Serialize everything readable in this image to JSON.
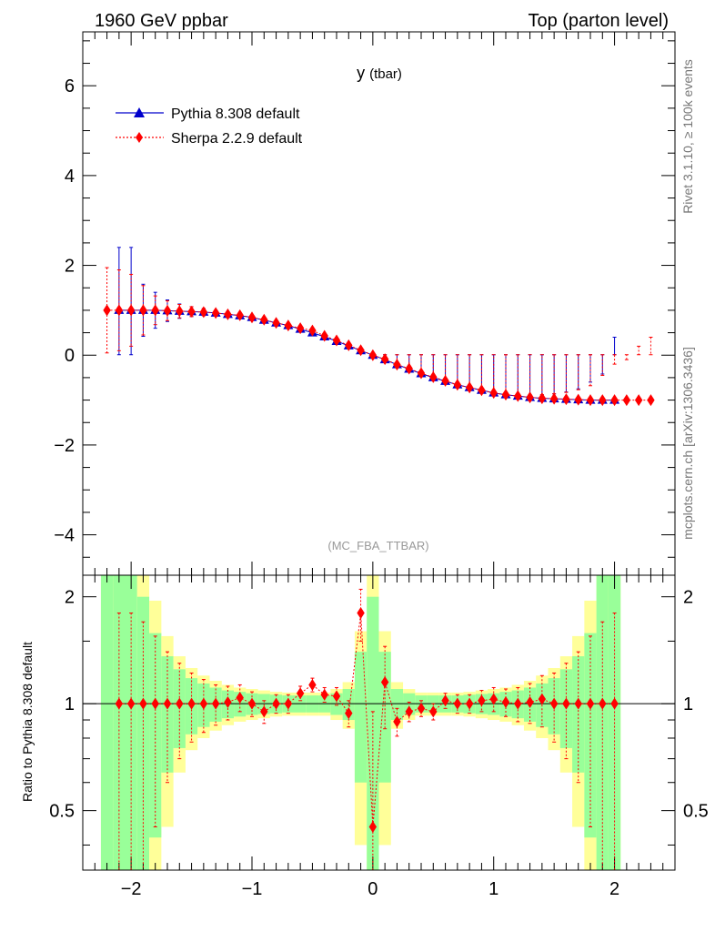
{
  "header": {
    "left": "1960 GeV ppbar",
    "right": "Top (parton level)"
  },
  "side": {
    "rivet": "Rivet 3.1.10, ≥ 100k events",
    "mcplots": "mcplots.cern.ch [arXiv:1306.3436]"
  },
  "chart_data": [
    {
      "type": "scatter",
      "title_main": "y",
      "title_sub": "(tbar)",
      "watermark": "(MC_FBA_TTBAR)",
      "xlim": [
        -2.4,
        2.5
      ],
      "ylim": [
        -4.9,
        7.2
      ],
      "yticks": [
        -4,
        -2,
        0,
        2,
        4,
        6
      ],
      "ytick_labels": [
        "−4",
        "−2",
        "0",
        "2",
        "4",
        "6"
      ],
      "legend_position": "top-left",
      "series": [
        {
          "name": "Pythia 8.308 default",
          "color": "#0000cc",
          "marker": "triangle",
          "line": "solid",
          "x": [
            -2.1,
            -2.0,
            -1.9,
            -1.8,
            -1.7,
            -1.6,
            -1.5,
            -1.4,
            -1.3,
            -1.2,
            -1.1,
            -1.0,
            -0.9,
            -0.8,
            -0.7,
            -0.6,
            -0.5,
            -0.4,
            -0.3,
            -0.2,
            -0.1,
            0.0,
            0.1,
            0.2,
            0.3,
            0.4,
            0.5,
            0.6,
            0.7,
            0.8,
            0.9,
            1.0,
            1.1,
            1.2,
            1.3,
            1.4,
            1.5,
            1.6,
            1.7,
            1.8,
            1.9,
            2.0
          ],
          "y": [
            1.0,
            1.0,
            1.0,
            1.0,
            0.99,
            0.98,
            0.97,
            0.96,
            0.94,
            0.91,
            0.88,
            0.84,
            0.78,
            0.72,
            0.66,
            0.58,
            0.5,
            0.41,
            0.31,
            0.21,
            0.1,
            0.0,
            -0.1,
            -0.21,
            -0.31,
            -0.41,
            -0.5,
            -0.58,
            -0.66,
            -0.72,
            -0.78,
            -0.84,
            -0.88,
            -0.91,
            -0.94,
            -0.96,
            -0.97,
            -0.98,
            -0.99,
            -1.0,
            -1.0,
            -1.0
          ],
          "yerr": [
            1.4,
            1.4,
            0.58,
            0.4,
            0.24,
            0.16,
            0.11,
            0.08,
            0.06,
            0.05,
            0.04,
            0.03,
            0.03,
            0.03,
            0.03,
            0.03,
            0.03,
            0.03,
            0.03,
            0.03,
            0.03,
            0.03,
            0.03,
            0.03,
            0.03,
            0.03,
            0.03,
            0.03,
            0.03,
            0.03,
            0.03,
            0.03,
            0.04,
            0.05,
            0.06,
            0.08,
            0.11,
            0.16,
            0.24,
            0.4,
            0.58,
            1.4
          ]
        },
        {
          "name": "Sherpa 2.2.9 default",
          "color": "#ff0000",
          "marker": "diamond",
          "line": "dotted",
          "x": [
            -2.2,
            -2.1,
            -2.0,
            -1.9,
            -1.8,
            -1.7,
            -1.6,
            -1.5,
            -1.4,
            -1.3,
            -1.2,
            -1.1,
            -1.0,
            -0.9,
            -0.8,
            -0.7,
            -0.6,
            -0.5,
            -0.4,
            -0.3,
            -0.2,
            -0.1,
            0.0,
            0.1,
            0.2,
            0.3,
            0.4,
            0.5,
            0.6,
            0.7,
            0.8,
            0.9,
            1.0,
            1.1,
            1.2,
            1.3,
            1.4,
            1.5,
            1.6,
            1.7,
            1.8,
            1.9,
            2.0,
            2.1,
            2.2,
            2.3
          ],
          "y": [
            1.0,
            1.0,
            1.0,
            1.0,
            1.0,
            0.99,
            0.98,
            0.97,
            0.96,
            0.94,
            0.91,
            0.89,
            0.84,
            0.79,
            0.72,
            0.66,
            0.6,
            0.55,
            0.43,
            0.33,
            0.22,
            0.11,
            0.0,
            -0.09,
            -0.21,
            -0.3,
            -0.4,
            -0.49,
            -0.57,
            -0.66,
            -0.72,
            -0.78,
            -0.84,
            -0.88,
            -0.91,
            -0.94,
            -0.96,
            -0.97,
            -0.98,
            -0.99,
            -1.0,
            -1.0,
            -1.0,
            -1.0,
            -1.0,
            -1.0
          ],
          "yerr": [
            0.95,
            0.9,
            0.8,
            0.55,
            0.32,
            0.22,
            0.15,
            0.11,
            0.08,
            0.06,
            0.05,
            0.04,
            0.04,
            0.04,
            0.03,
            0.03,
            0.03,
            0.03,
            0.03,
            0.03,
            0.03,
            0.03,
            0.03,
            0.03,
            0.03,
            0.03,
            0.03,
            0.03,
            0.03,
            0.03,
            0.03,
            0.04,
            0.04,
            0.04,
            0.05,
            0.06,
            0.08,
            0.11,
            0.15,
            0.22,
            0.32,
            0.55,
            0.8,
            0.9,
            1.2,
            1.4
          ]
        }
      ]
    },
    {
      "type": "scatter",
      "ylabel": "Ratio to Pythia 8.308 default",
      "xlim": [
        -2.4,
        2.5
      ],
      "ylim": [
        0.34,
        2.3
      ],
      "yscale": "log",
      "yticks": [
        0.5,
        1,
        2
      ],
      "ytick_labels": [
        "0.5",
        "1",
        "2"
      ],
      "xticks": [
        -2,
        -1,
        0,
        1,
        2
      ],
      "xtick_labels": [
        "−2",
        "−1",
        "0",
        "1",
        "2"
      ],
      "band_colors": {
        "inner": "#99ff99",
        "outer": "#ffff99"
      },
      "bands": {
        "x": [
          -2.2,
          -2.1,
          -2.0,
          -1.9,
          -1.8,
          -1.7,
          -1.6,
          -1.5,
          -1.4,
          -1.3,
          -1.2,
          -1.1,
          -1.0,
          -0.9,
          -0.8,
          -0.7,
          -0.6,
          -0.5,
          -0.4,
          -0.3,
          -0.2,
          -0.1,
          0.0,
          0.1,
          0.2,
          0.3,
          0.4,
          0.5,
          0.6,
          0.7,
          0.8,
          0.9,
          1.0,
          1.1,
          1.2,
          1.3,
          1.4,
          1.5,
          1.6,
          1.7,
          1.8,
          1.9,
          2.0
        ],
        "inner": [
          2.0,
          2.0,
          1.4,
          1.0,
          0.58,
          0.36,
          0.25,
          0.18,
          0.14,
          0.11,
          0.09,
          0.08,
          0.07,
          0.065,
          0.06,
          0.055,
          0.055,
          0.055,
          0.055,
          0.07,
          0.1,
          0.4,
          1.0,
          0.4,
          0.1,
          0.07,
          0.055,
          0.055,
          0.055,
          0.055,
          0.06,
          0.065,
          0.07,
          0.08,
          0.09,
          0.11,
          0.14,
          0.18,
          0.25,
          0.36,
          0.58,
          1.4,
          2.0
        ],
        "outer": [
          2.0,
          2.0,
          2.0,
          1.6,
          0.95,
          0.55,
          0.36,
          0.26,
          0.2,
          0.16,
          0.13,
          0.11,
          0.1,
          0.09,
          0.08,
          0.075,
          0.075,
          0.075,
          0.075,
          0.1,
          0.15,
          0.6,
          2.0,
          0.6,
          0.15,
          0.1,
          0.075,
          0.075,
          0.075,
          0.075,
          0.08,
          0.09,
          0.1,
          0.11,
          0.13,
          0.16,
          0.2,
          0.26,
          0.36,
          0.55,
          0.95,
          2.0,
          2.0
        ]
      },
      "series": [
        {
          "name": "Sherpa 2.2.9 default",
          "color": "#ff0000",
          "marker": "diamond",
          "line": "dotted",
          "x": [
            -2.1,
            -2.0,
            -1.9,
            -1.8,
            -1.7,
            -1.6,
            -1.5,
            -1.4,
            -1.3,
            -1.2,
            -1.1,
            -1.0,
            -0.9,
            -0.8,
            -0.7,
            -0.6,
            -0.5,
            -0.4,
            -0.3,
            -0.2,
            -0.1,
            0.0,
            0.1,
            0.2,
            0.3,
            0.4,
            0.5,
            0.6,
            0.7,
            0.8,
            0.9,
            1.0,
            1.1,
            1.2,
            1.3,
            1.4,
            1.5,
            1.6,
            1.7,
            1.8,
            1.9,
            2.0
          ],
          "y": [
            1.0,
            1.0,
            1.0,
            1.0,
            1.0,
            1.0,
            1.0,
            1.0,
            1.0,
            1.01,
            1.04,
            1.0,
            0.95,
            1.0,
            1.0,
            1.07,
            1.13,
            1.06,
            1.05,
            0.94,
            1.8,
            0.45,
            1.15,
            0.89,
            0.95,
            0.97,
            0.95,
            1.02,
            1.0,
            1.0,
            1.02,
            1.03,
            1.01,
            1.0,
            1.01,
            1.03,
            1.0,
            1.0,
            1.0,
            1.0,
            1.0,
            1.0
          ],
          "yerr": [
            0.8,
            0.8,
            0.7,
            0.55,
            0.4,
            0.3,
            0.22,
            0.17,
            0.13,
            0.11,
            0.09,
            0.08,
            0.07,
            0.06,
            0.06,
            0.05,
            0.05,
            0.05,
            0.06,
            0.08,
            0.3,
            0.5,
            0.3,
            0.08,
            0.06,
            0.05,
            0.05,
            0.05,
            0.06,
            0.06,
            0.07,
            0.08,
            0.09,
            0.11,
            0.13,
            0.17,
            0.22,
            0.3,
            0.4,
            0.55,
            0.7,
            0.8
          ]
        }
      ]
    }
  ]
}
